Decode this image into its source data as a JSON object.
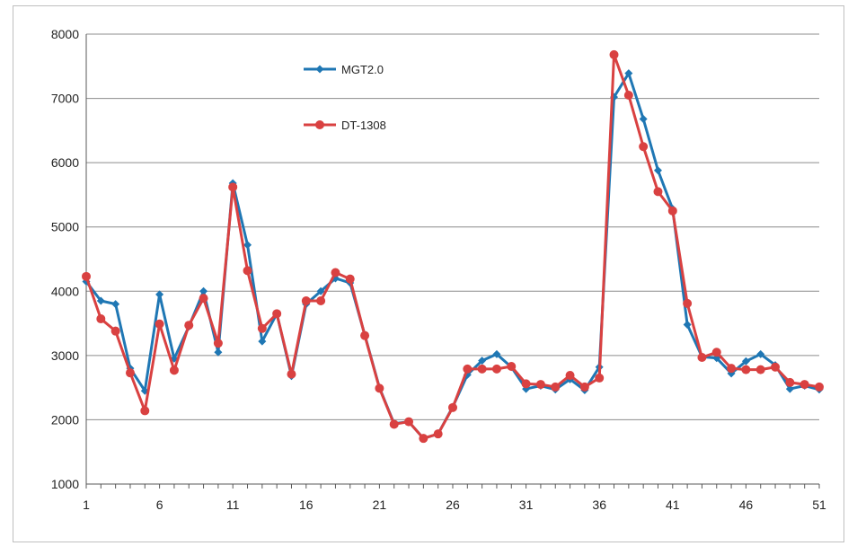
{
  "chart_data": {
    "type": "line",
    "title": "",
    "xlabel": "",
    "ylabel": "",
    "ylim": [
      1000,
      8000
    ],
    "yticks": [
      1000,
      2000,
      3000,
      4000,
      5000,
      6000,
      7000,
      8000
    ],
    "xticks": [
      1,
      6,
      11,
      16,
      21,
      26,
      31,
      36,
      41,
      46,
      51
    ],
    "grid": "horizontal",
    "legend": "top-center",
    "x": [
      1,
      2,
      3,
      4,
      5,
      6,
      7,
      8,
      9,
      10,
      11,
      12,
      13,
      14,
      15,
      16,
      17,
      18,
      19,
      20,
      21,
      22,
      23,
      24,
      25,
      26,
      27,
      28,
      29,
      30,
      31,
      32,
      33,
      34,
      35,
      36,
      37,
      38,
      39,
      40,
      41,
      42,
      43,
      44,
      45,
      46,
      47,
      48,
      49,
      50,
      51
    ],
    "series": [
      {
        "name": "MGT2.0",
        "color": "#1f77b4",
        "marker": "diamond",
        "values": [
          4150,
          3850,
          3800,
          2800,
          2450,
          3950,
          2950,
          3450,
          4000,
          3050,
          5680,
          4720,
          3220,
          3650,
          2680,
          3800,
          4000,
          4200,
          4130,
          3320,
          2500,
          1940,
          1970,
          1710,
          1780,
          2200,
          2700,
          2920,
          3020,
          2820,
          2480,
          2530,
          2470,
          2630,
          2460,
          2820,
          7020,
          7390,
          6680,
          5880,
          5280,
          3480,
          2980,
          2960,
          2720,
          2910,
          3020,
          2850,
          2480,
          2530,
          2470
        ]
      },
      {
        "name": "DT-1308",
        "color": "#d94141",
        "marker": "circle",
        "values": [
          4230,
          3570,
          3380,
          2730,
          2140,
          3490,
          2770,
          3470,
          3890,
          3190,
          5620,
          4320,
          3420,
          3650,
          2710,
          3850,
          3850,
          4290,
          4190,
          3310,
          2490,
          1930,
          1970,
          1710,
          1780,
          2190,
          2790,
          2790,
          2790,
          2830,
          2560,
          2550,
          2510,
          2690,
          2510,
          2650,
          7680,
          7050,
          6250,
          5550,
          5250,
          3810,
          2970,
          3050,
          2800,
          2780,
          2780,
          2820,
          2580,
          2550,
          2510
        ]
      }
    ]
  }
}
